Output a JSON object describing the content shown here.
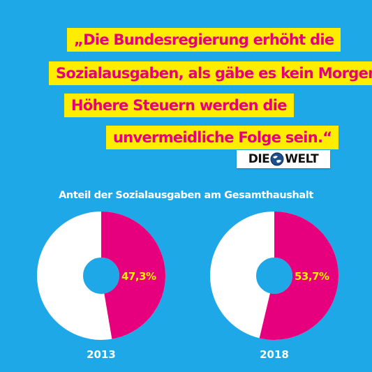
{
  "quote": {
    "lines": [
      "„Die Bundesregierung erhöht die",
      "Sozialausgaben, als gäbe es kein Morgen.",
      "Höhere Steuern werden die",
      "unvermeidliche Folge sein.“"
    ]
  },
  "source_logo": {
    "left": "DIE",
    "right": "WELT"
  },
  "colors": {
    "background": "#1fa8e8",
    "quote_box": "#ffed00",
    "quote_text": "#e6007e",
    "share": "#e6007e",
    "rest": "#ffffff",
    "label": "#ffed00"
  },
  "chart_data": {
    "type": "pie",
    "title": "Anteil der Sozialausgaben am Gesamthaushalt",
    "charts": [
      {
        "year": "2013",
        "value": 47.3,
        "label": "47,3%"
      },
      {
        "year": "2018",
        "value": 53.7,
        "label": "53,7%"
      }
    ]
  }
}
